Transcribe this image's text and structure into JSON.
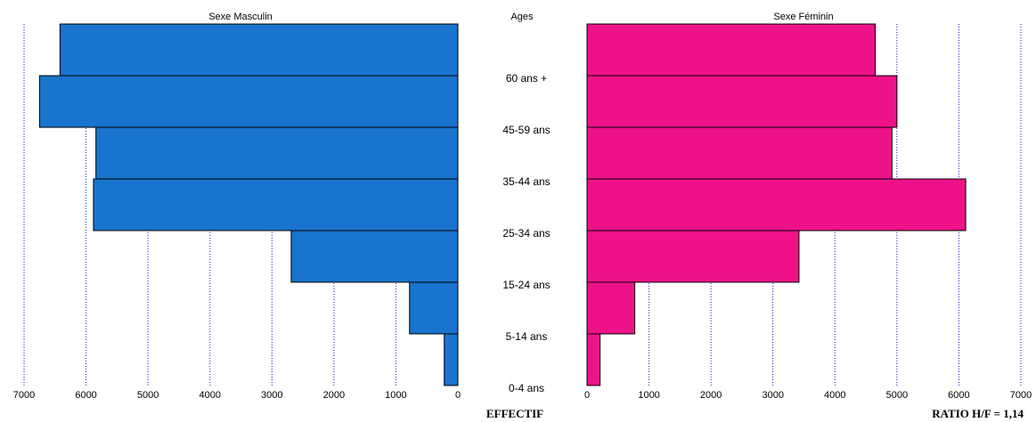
{
  "chart_data": {
    "type": "bar",
    "orientation": "horizontal-pyramid",
    "axis_label": "EFFECTIF",
    "ratio_label": "RATIO H/F = 1,14",
    "age_header": "Ages",
    "categories": [
      "0-4 ans",
      "5-14 ans",
      "15-24 ans",
      "25-34 ans",
      "35-44 ans",
      "45-59 ans",
      "60 ans +"
    ],
    "xlim": [
      0,
      7000
    ],
    "ticks": [
      0,
      1000,
      2000,
      3000,
      4000,
      5000,
      6000,
      7000
    ],
    "grid": "vertical dotted",
    "series": [
      {
        "name": "Sexe Masculin",
        "color": "#1874CD",
        "values": [
          220,
          780,
          2690,
          5880,
          5840,
          6750,
          6420
        ]
      },
      {
        "name": "Sexe Féminin",
        "color": "#EE1289",
        "values": [
          210,
          770,
          3420,
          6110,
          4920,
          5000,
          4650
        ]
      }
    ]
  }
}
